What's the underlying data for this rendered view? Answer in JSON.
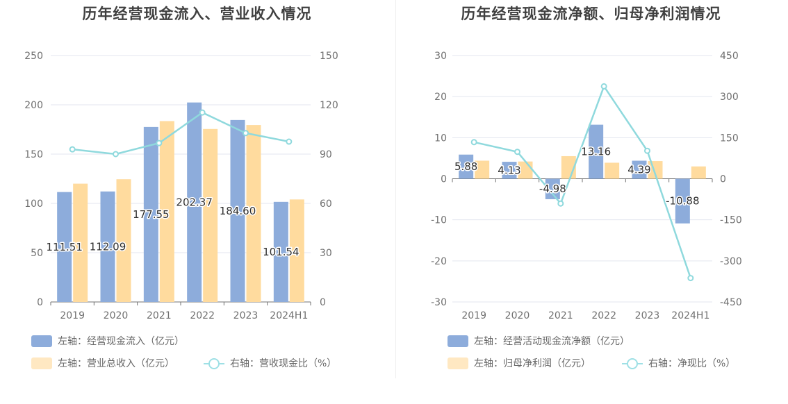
{
  "chart_data": [
    {
      "type": "bar",
      "title": "历年经营现金流入、营业收入情况",
      "categories": [
        "2019",
        "2020",
        "2021",
        "2022",
        "2023",
        "2024H1"
      ],
      "ylim_left": [
        0,
        250
      ],
      "ylim_right": [
        0,
        150
      ],
      "left_ticks": [
        "0",
        "50",
        "100",
        "150",
        "200",
        "250"
      ],
      "right_ticks": [
        "0",
        "30",
        "60",
        "90",
        "120",
        "150"
      ],
      "series": [
        {
          "name": "左轴：经营现金流入（亿元）",
          "axis": "left",
          "type": "bar",
          "color": "#8dacdb",
          "values": [
            111.51,
            112.09,
            177.55,
            202.37,
            184.6,
            101.54
          ],
          "labels": [
            "111.51",
            "112.09",
            "177.55",
            "202.37",
            "184.60",
            "101.54"
          ]
        },
        {
          "name": "左轴：营业总收入（亿元）",
          "axis": "left",
          "type": "bar",
          "color": "#ffdb9e",
          "values": [
            120,
            124.5,
            183.5,
            175.5,
            179.5,
            104
          ]
        },
        {
          "name": "右轴：营收现金比（%）",
          "axis": "right",
          "type": "line",
          "color": "#8fd9dd",
          "values": [
            92.9,
            90,
            96.7,
            115.3,
            102.8,
            97.6
          ]
        }
      ],
      "legend": "bottom",
      "grid": true
    },
    {
      "type": "bar",
      "title": "历年经营现金流净额、归母净利润情况",
      "categories": [
        "2019",
        "2020",
        "2021",
        "2022",
        "2023",
        "2024H1"
      ],
      "ylim_left": [
        -30,
        30
      ],
      "ylim_right": [
        -450,
        450
      ],
      "left_ticks": [
        "-30",
        "-20",
        "-10",
        "0",
        "10",
        "20",
        "30"
      ],
      "right_ticks": [
        "-450",
        "-300",
        "-150",
        "0",
        "150",
        "300",
        "450"
      ],
      "series": [
        {
          "name": "左轴：经营活动现金流净额（亿元）",
          "axis": "left",
          "type": "bar",
          "color": "#8dacdb",
          "values": [
            5.88,
            4.13,
            -4.98,
            13.16,
            4.39,
            -10.88
          ],
          "labels": [
            "5.88",
            "4.13",
            "-4.98",
            "13.16",
            "4.39",
            "-10.88"
          ]
        },
        {
          "name": "左轴：归母净利润（亿元）",
          "axis": "left",
          "type": "bar",
          "color": "#ffdb9e",
          "values": [
            4.4,
            4.2,
            5.5,
            3.9,
            4.3,
            3.0
          ]
        },
        {
          "name": "右轴：净现比（%）",
          "axis": "right",
          "type": "line",
          "color": "#8fd9dd",
          "values": [
            133.6,
            98.3,
            -90.5,
            337.4,
            102.1,
            -362.7
          ]
        }
      ],
      "legend": "bottom",
      "grid": true
    }
  ]
}
